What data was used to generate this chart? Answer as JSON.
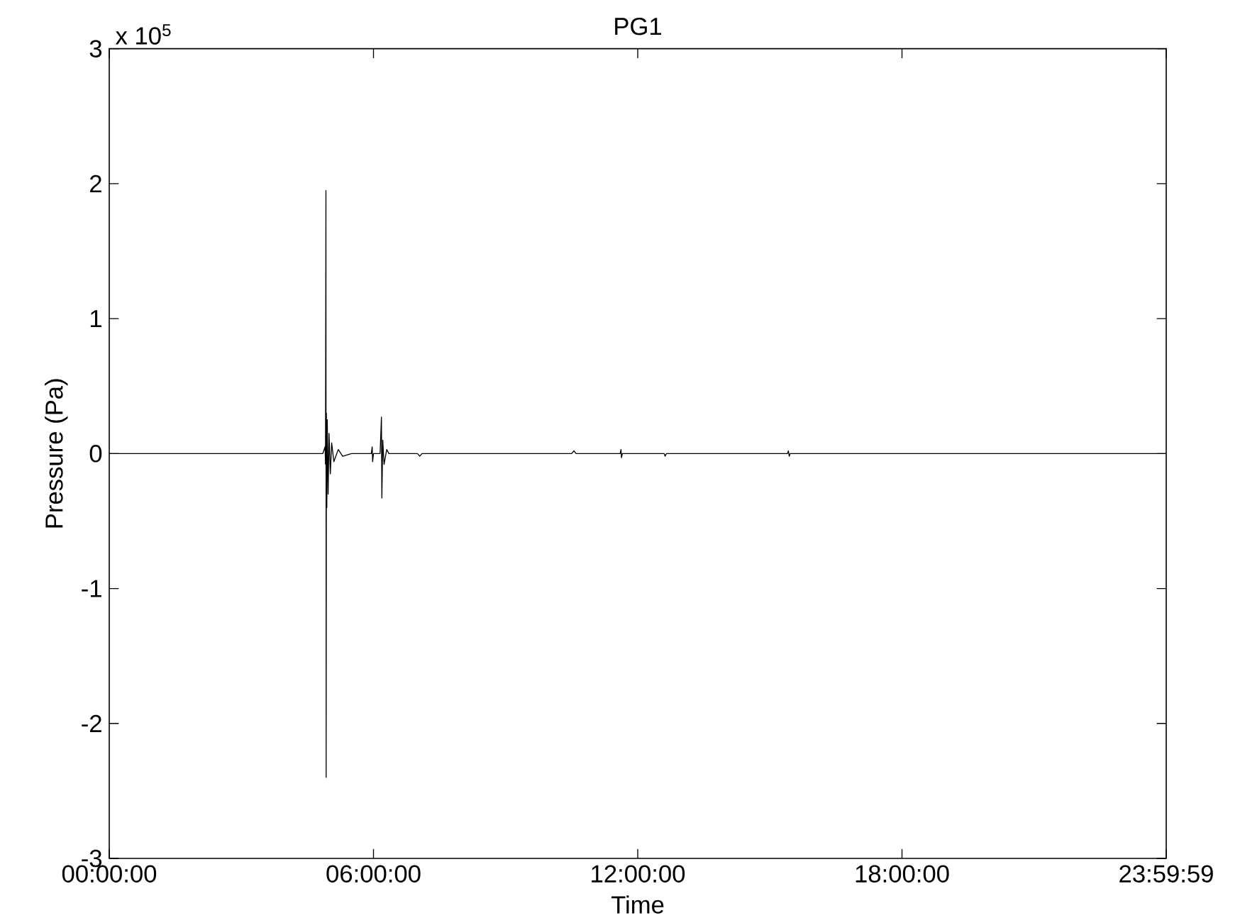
{
  "chart_data": {
    "type": "line",
    "title": "PG1",
    "xlabel": "Time",
    "ylabel": "Pressure (Pa)",
    "annotations": [
      "x 10$^{5}$"
    ],
    "x": [
      0,
      4.85,
      4.9,
      4.91,
      4.92,
      4.925,
      4.93,
      4.94,
      4.95,
      4.97,
      4.99,
      5.02,
      5.05,
      5.1,
      5.2,
      5.3,
      5.5,
      5.95,
      5.97,
      5.98,
      6.0,
      6.15,
      6.18,
      6.19,
      6.21,
      6.24,
      6.3,
      6.35,
      7.0,
      7.05,
      7.1,
      10.5,
      10.55,
      10.6,
      11.6,
      11.62,
      11.63,
      11.65,
      12.6,
      12.62,
      12.65,
      15.4,
      15.42,
      15.44,
      15.46,
      23.99972
    ],
    "series": [
      {
        "color": "#000000",
        "values": [
          0,
          0,
          0.05,
          -0.08,
          1.95,
          -2.4,
          0.3,
          -0.4,
          0.25,
          -0.3,
          0.15,
          -0.15,
          0.08,
          -0.06,
          0.03,
          -0.02,
          0,
          0,
          0.05,
          -0.06,
          0,
          0,
          0.27,
          -0.33,
          0.1,
          -0.08,
          0.03,
          0,
          0,
          -0.02,
          0,
          0,
          0.02,
          0,
          0,
          0.03,
          -0.03,
          0,
          0,
          -0.02,
          0,
          0,
          0.02,
          -0.02,
          0,
          0
        ]
      }
    ],
    "xlim": [
      0,
      23.99972
    ],
    "xticks": [
      {
        "value": 0,
        "label": "00:00:00"
      },
      {
        "value": 6,
        "label": "06:00:00"
      },
      {
        "value": 12,
        "label": "12:00:00"
      },
      {
        "value": 18,
        "label": "18:00:00"
      },
      {
        "value": 23.99972,
        "label": "23:59:59"
      }
    ],
    "ylim": [
      -3,
      3
    ],
    "yticks": [
      -3,
      -2,
      -1,
      0,
      1,
      2,
      3
    ],
    "grid": false,
    "marker": "none",
    "line_style": "solid"
  }
}
